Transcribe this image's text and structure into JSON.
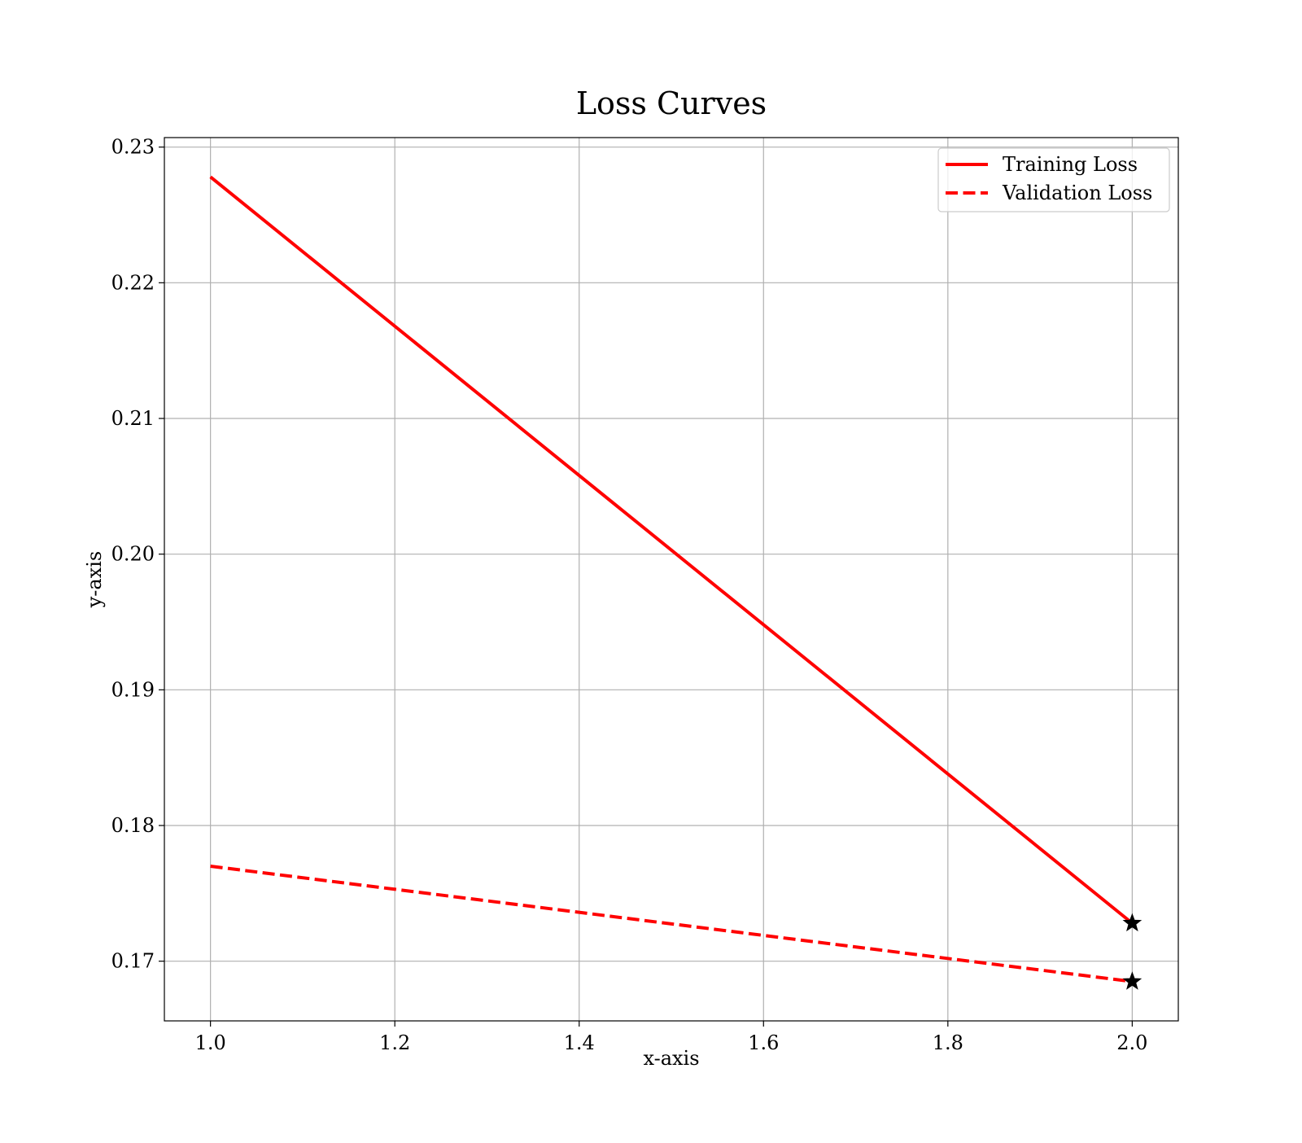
{
  "chart_data": {
    "type": "line",
    "title": "Loss Curves",
    "xlabel": "x-axis",
    "ylabel": "y-axis",
    "xlim": [
      0.95,
      2.05
    ],
    "ylim": [
      0.1656,
      0.2307
    ],
    "x_ticks": [
      1.0,
      1.2,
      1.4,
      1.6,
      1.8,
      2.0
    ],
    "x_tick_labels": [
      "1.0",
      "1.2",
      "1.4",
      "1.6",
      "1.8",
      "2.0"
    ],
    "y_ticks": [
      0.17,
      0.18,
      0.19,
      0.2,
      0.21,
      0.22,
      0.23
    ],
    "y_tick_labels": [
      "0.17",
      "0.18",
      "0.19",
      "0.20",
      "0.21",
      "0.22",
      "0.23"
    ],
    "grid": true,
    "legend_position": "top-right",
    "series": [
      {
        "name": "Training Loss",
        "x": [
          1,
          2
        ],
        "y": [
          0.2278,
          0.1728
        ],
        "color": "#ff0000",
        "line_style": "solid",
        "min_marker": "star"
      },
      {
        "name": "Validation Loss",
        "x": [
          1,
          2
        ],
        "y": [
          0.177,
          0.1685
        ],
        "color": "#ff0000",
        "line_style": "dashed",
        "min_marker": "star"
      }
    ],
    "marker_color": "#000000"
  }
}
